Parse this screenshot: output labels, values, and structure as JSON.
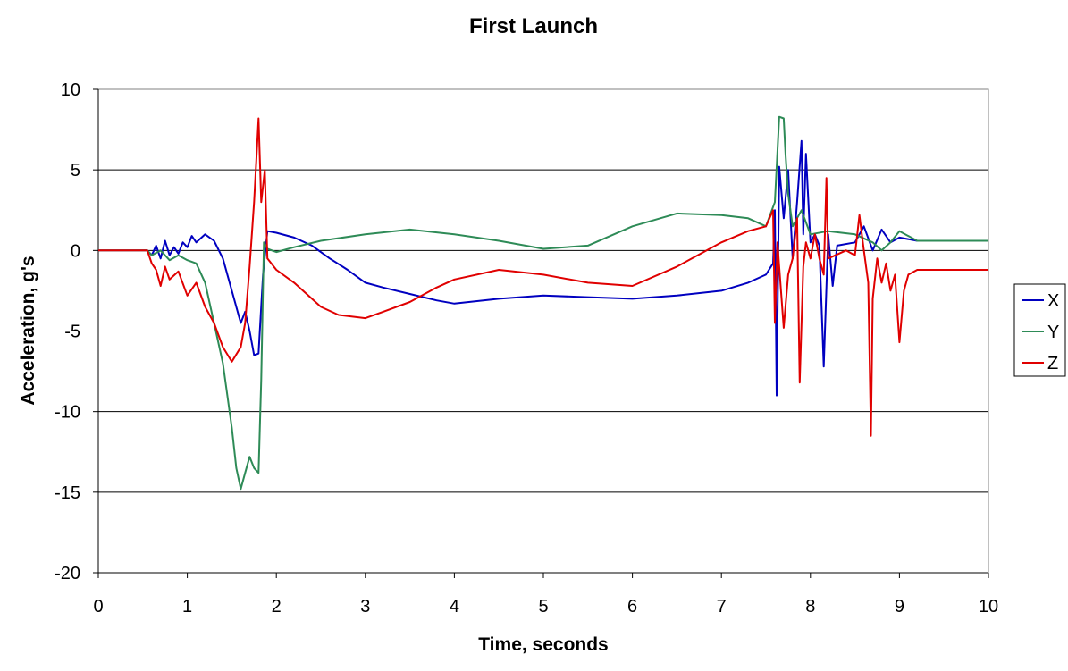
{
  "chart_data": {
    "type": "line",
    "title": "First Launch",
    "xlabel": "Time, seconds",
    "ylabel": "Acceleration, g's",
    "xlim": [
      0,
      10
    ],
    "ylim": [
      -20,
      10
    ],
    "x_ticks": [
      "0",
      "1",
      "2",
      "3",
      "4",
      "5",
      "6",
      "7",
      "8",
      "9",
      "10"
    ],
    "y_ticks": [
      "10",
      "5",
      "0",
      "-5",
      "-10",
      "-15",
      "-20"
    ],
    "grid": "horizontal",
    "legend_position": "right",
    "series": [
      {
        "name": "X",
        "color": "#0000c0",
        "points": [
          [
            0,
            0
          ],
          [
            0.55,
            0
          ],
          [
            0.6,
            -0.3
          ],
          [
            0.65,
            0.3
          ],
          [
            0.7,
            -0.5
          ],
          [
            0.75,
            0.6
          ],
          [
            0.8,
            -0.3
          ],
          [
            0.85,
            0.2
          ],
          [
            0.9,
            -0.2
          ],
          [
            0.95,
            0.5
          ],
          [
            1.0,
            0.2
          ],
          [
            1.05,
            0.9
          ],
          [
            1.1,
            0.5
          ],
          [
            1.2,
            1.0
          ],
          [
            1.3,
            0.6
          ],
          [
            1.4,
            -0.5
          ],
          [
            1.5,
            -2.5
          ],
          [
            1.6,
            -4.5
          ],
          [
            1.65,
            -3.8
          ],
          [
            1.7,
            -5.0
          ],
          [
            1.75,
            -6.5
          ],
          [
            1.8,
            -6.4
          ],
          [
            1.85,
            -1.5
          ],
          [
            1.9,
            1.2
          ],
          [
            2.0,
            1.1
          ],
          [
            2.2,
            0.8
          ],
          [
            2.4,
            0.3
          ],
          [
            2.6,
            -0.5
          ],
          [
            2.8,
            -1.2
          ],
          [
            3.0,
            -2.0
          ],
          [
            3.2,
            -2.3
          ],
          [
            3.5,
            -2.7
          ],
          [
            3.8,
            -3.1
          ],
          [
            4.0,
            -3.3
          ],
          [
            4.5,
            -3.0
          ],
          [
            5.0,
            -2.8
          ],
          [
            5.5,
            -2.9
          ],
          [
            6.0,
            -3.0
          ],
          [
            6.5,
            -2.8
          ],
          [
            7.0,
            -2.5
          ],
          [
            7.3,
            -2.0
          ],
          [
            7.5,
            -1.5
          ],
          [
            7.58,
            -0.8
          ],
          [
            7.6,
            2.5
          ],
          [
            7.62,
            -9.0
          ],
          [
            7.65,
            5.2
          ],
          [
            7.7,
            2.0
          ],
          [
            7.75,
            5.0
          ],
          [
            7.8,
            -0.5
          ],
          [
            7.85,
            3.0
          ],
          [
            7.9,
            6.8
          ],
          [
            7.92,
            1.0
          ],
          [
            7.95,
            6.0
          ],
          [
            8.0,
            0.5
          ],
          [
            8.05,
            1.0
          ],
          [
            8.1,
            0.3
          ],
          [
            8.15,
            -7.2
          ],
          [
            8.2,
            1.0
          ],
          [
            8.25,
            -2.2
          ],
          [
            8.3,
            0.3
          ],
          [
            8.5,
            0.5
          ],
          [
            8.6,
            1.5
          ],
          [
            8.7,
            0.0
          ],
          [
            8.8,
            1.3
          ],
          [
            8.9,
            0.5
          ],
          [
            9.0,
            0.8
          ],
          [
            9.2,
            0.6
          ],
          [
            10.0,
            0.6
          ]
        ]
      },
      {
        "name": "Y",
        "color": "#2e8b57",
        "points": [
          [
            0,
            0
          ],
          [
            0.55,
            0
          ],
          [
            0.6,
            -0.3
          ],
          [
            0.7,
            0.0
          ],
          [
            0.8,
            -0.6
          ],
          [
            0.9,
            -0.3
          ],
          [
            1.0,
            -0.6
          ],
          [
            1.1,
            -0.8
          ],
          [
            1.2,
            -2.0
          ],
          [
            1.3,
            -4.5
          ],
          [
            1.4,
            -7.0
          ],
          [
            1.5,
            -11.0
          ],
          [
            1.55,
            -13.5
          ],
          [
            1.6,
            -14.8
          ],
          [
            1.65,
            -13.8
          ],
          [
            1.7,
            -12.8
          ],
          [
            1.75,
            -13.5
          ],
          [
            1.8,
            -13.8
          ],
          [
            1.83,
            -8.0
          ],
          [
            1.86,
            0.5
          ],
          [
            1.9,
            0.1
          ],
          [
            2.0,
            -0.1
          ],
          [
            2.2,
            0.2
          ],
          [
            2.5,
            0.6
          ],
          [
            3.0,
            1.0
          ],
          [
            3.5,
            1.3
          ],
          [
            4.0,
            1.0
          ],
          [
            4.5,
            0.6
          ],
          [
            5.0,
            0.1
          ],
          [
            5.5,
            0.3
          ],
          [
            6.0,
            1.5
          ],
          [
            6.5,
            2.3
          ],
          [
            7.0,
            2.2
          ],
          [
            7.3,
            2.0
          ],
          [
            7.5,
            1.5
          ],
          [
            7.6,
            3.0
          ],
          [
            7.65,
            8.3
          ],
          [
            7.7,
            8.2
          ],
          [
            7.72,
            6.0
          ],
          [
            7.75,
            3.5
          ],
          [
            7.8,
            1.5
          ],
          [
            7.9,
            2.5
          ],
          [
            8.0,
            1.0
          ],
          [
            8.2,
            1.2
          ],
          [
            8.5,
            1.0
          ],
          [
            8.7,
            0.5
          ],
          [
            8.8,
            0.0
          ],
          [
            8.9,
            0.5
          ],
          [
            9.0,
            1.2
          ],
          [
            9.2,
            0.6
          ],
          [
            10.0,
            0.6
          ]
        ]
      },
      {
        "name": "Z",
        "color": "#e00000",
        "points": [
          [
            0,
            0
          ],
          [
            0.55,
            0
          ],
          [
            0.6,
            -0.8
          ],
          [
            0.65,
            -1.2
          ],
          [
            0.7,
            -2.2
          ],
          [
            0.75,
            -1.0
          ],
          [
            0.8,
            -1.8
          ],
          [
            0.9,
            -1.3
          ],
          [
            1.0,
            -2.8
          ],
          [
            1.1,
            -2.0
          ],
          [
            1.2,
            -3.5
          ],
          [
            1.3,
            -4.5
          ],
          [
            1.4,
            -6.0
          ],
          [
            1.5,
            -6.9
          ],
          [
            1.6,
            -6.0
          ],
          [
            1.65,
            -4.5
          ],
          [
            1.7,
            -1.0
          ],
          [
            1.75,
            3.0
          ],
          [
            1.8,
            8.2
          ],
          [
            1.83,
            3.0
          ],
          [
            1.87,
            5.0
          ],
          [
            1.9,
            -0.5
          ],
          [
            2.0,
            -1.2
          ],
          [
            2.2,
            -2.0
          ],
          [
            2.5,
            -3.5
          ],
          [
            2.7,
            -4.0
          ],
          [
            3.0,
            -4.2
          ],
          [
            3.2,
            -3.8
          ],
          [
            3.5,
            -3.2
          ],
          [
            3.8,
            -2.3
          ],
          [
            4.0,
            -1.8
          ],
          [
            4.5,
            -1.2
          ],
          [
            5.0,
            -1.5
          ],
          [
            5.5,
            -2.0
          ],
          [
            6.0,
            -2.2
          ],
          [
            6.5,
            -1.0
          ],
          [
            7.0,
            0.5
          ],
          [
            7.3,
            1.2
          ],
          [
            7.5,
            1.5
          ],
          [
            7.58,
            2.5
          ],
          [
            7.6,
            -4.5
          ],
          [
            7.63,
            0.5
          ],
          [
            7.7,
            -4.8
          ],
          [
            7.75,
            -1.5
          ],
          [
            7.8,
            -0.5
          ],
          [
            7.85,
            2.0
          ],
          [
            7.88,
            -8.2
          ],
          [
            7.92,
            -1.0
          ],
          [
            7.95,
            0.5
          ],
          [
            8.0,
            -0.5
          ],
          [
            8.05,
            1.0
          ],
          [
            8.1,
            -0.5
          ],
          [
            8.15,
            -1.5
          ],
          [
            8.18,
            4.5
          ],
          [
            8.2,
            -0.5
          ],
          [
            8.4,
            0.0
          ],
          [
            8.5,
            -0.3
          ],
          [
            8.55,
            2.2
          ],
          [
            8.6,
            0.0
          ],
          [
            8.65,
            -2.0
          ],
          [
            8.68,
            -11.5
          ],
          [
            8.7,
            -3.0
          ],
          [
            8.75,
            -0.5
          ],
          [
            8.8,
            -2.0
          ],
          [
            8.85,
            -0.8
          ],
          [
            8.9,
            -2.5
          ],
          [
            8.95,
            -1.5
          ],
          [
            9.0,
            -5.7
          ],
          [
            9.05,
            -2.5
          ],
          [
            9.1,
            -1.5
          ],
          [
            9.2,
            -1.2
          ],
          [
            10.0,
            -1.2
          ]
        ]
      }
    ]
  }
}
